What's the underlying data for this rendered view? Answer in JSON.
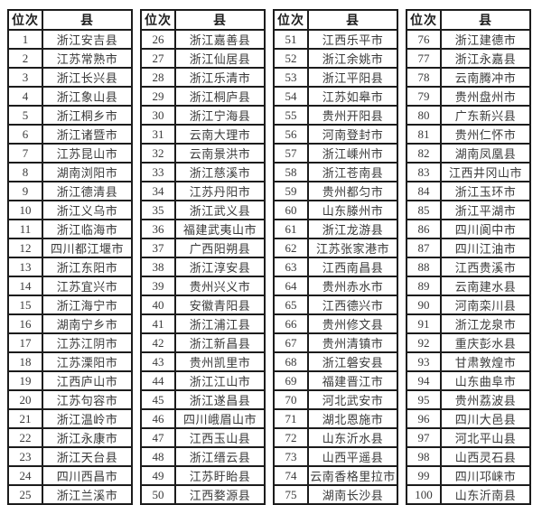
{
  "table": {
    "rank_header": "位次",
    "county_header": "县",
    "colors": {
      "border": "#1c1c1c",
      "text": "#3a3a3a",
      "header_text": "#1e1e1e",
      "background": "#ffffff"
    },
    "columns": [
      {
        "rows": [
          [
            "1",
            "浙江安吉县"
          ],
          [
            "2",
            "江苏常熟市"
          ],
          [
            "3",
            "浙江长兴县"
          ],
          [
            "4",
            "浙江象山县"
          ],
          [
            "5",
            "浙江桐乡市"
          ],
          [
            "6",
            "浙江诸暨市"
          ],
          [
            "7",
            "江苏昆山市"
          ],
          [
            "8",
            "湖南浏阳市"
          ],
          [
            "9",
            "浙江德清县"
          ],
          [
            "10",
            "浙江义乌市"
          ],
          [
            "11",
            "浙江临海市"
          ],
          [
            "12",
            "四川都江堰市"
          ],
          [
            "13",
            "浙江东阳市"
          ],
          [
            "14",
            "江苏宜兴市"
          ],
          [
            "15",
            "浙江海宁市"
          ],
          [
            "16",
            "湖南宁乡市"
          ],
          [
            "17",
            "江苏江阴市"
          ],
          [
            "18",
            "江苏溧阳市"
          ],
          [
            "19",
            "江西庐山市"
          ],
          [
            "20",
            "江苏句容市"
          ],
          [
            "21",
            "浙江温岭市"
          ],
          [
            "22",
            "浙江永康市"
          ],
          [
            "23",
            "浙江天台县"
          ],
          [
            "24",
            "四川西昌市"
          ],
          [
            "25",
            "浙江兰溪市"
          ]
        ]
      },
      {
        "rows": [
          [
            "26",
            "浙江嘉善县"
          ],
          [
            "27",
            "浙江仙居县"
          ],
          [
            "28",
            "浙江乐清市"
          ],
          [
            "29",
            "浙江桐庐县"
          ],
          [
            "30",
            "浙江宁海县"
          ],
          [
            "31",
            "云南大理市"
          ],
          [
            "32",
            "云南景洪市"
          ],
          [
            "33",
            "浙江慈溪市"
          ],
          [
            "34",
            "江苏丹阳市"
          ],
          [
            "35",
            "浙江武义县"
          ],
          [
            "36",
            "福建武夷山市"
          ],
          [
            "37",
            "广西阳朔县"
          ],
          [
            "38",
            "浙江淳安县"
          ],
          [
            "39",
            "贵州兴义市"
          ],
          [
            "40",
            "安徽青阳县"
          ],
          [
            "41",
            "浙江浦江县"
          ],
          [
            "42",
            "浙江新昌县"
          ],
          [
            "43",
            "贵州凯里市"
          ],
          [
            "44",
            "浙江江山市"
          ],
          [
            "45",
            "浙江遂昌县"
          ],
          [
            "46",
            "四川峨眉山市"
          ],
          [
            "47",
            "江西玉山县"
          ],
          [
            "48",
            "浙江缙云县"
          ],
          [
            "49",
            "江苏盱眙县"
          ],
          [
            "50",
            "江西婺源县"
          ]
        ]
      },
      {
        "rows": [
          [
            "51",
            "江西乐平市"
          ],
          [
            "52",
            "浙江余姚市"
          ],
          [
            "53",
            "浙江平阳县"
          ],
          [
            "54",
            "江苏如皋市"
          ],
          [
            "55",
            "贵州开阳县"
          ],
          [
            "56",
            "河南登封市"
          ],
          [
            "57",
            "浙江嵊州市"
          ],
          [
            "58",
            "浙江苍南县"
          ],
          [
            "59",
            "贵州都匀市"
          ],
          [
            "60",
            "山东滕州市"
          ],
          [
            "61",
            "浙江龙游县"
          ],
          [
            "62",
            "江苏张家港市"
          ],
          [
            "63",
            "江西南昌县"
          ],
          [
            "64",
            "贵州赤水市"
          ],
          [
            "65",
            "江西德兴市"
          ],
          [
            "66",
            "贵州修文县"
          ],
          [
            "67",
            "贵州清镇市"
          ],
          [
            "68",
            "浙江磐安县"
          ],
          [
            "69",
            "福建晋江市"
          ],
          [
            "70",
            "河北武安市"
          ],
          [
            "71",
            "湖北恩施市"
          ],
          [
            "72",
            "山东沂水县"
          ],
          [
            "73",
            "山西平遥县"
          ],
          [
            "74",
            "云南香格里拉市"
          ],
          [
            "75",
            "湖南长沙县"
          ]
        ]
      },
      {
        "rows": [
          [
            "76",
            "浙江建德市"
          ],
          [
            "77",
            "浙江永嘉县"
          ],
          [
            "78",
            "云南腾冲市"
          ],
          [
            "79",
            "贵州盘州市"
          ],
          [
            "80",
            "广东新兴县"
          ],
          [
            "81",
            "贵州仁怀市"
          ],
          [
            "82",
            "湖南凤凰县"
          ],
          [
            "83",
            "江西井冈山市"
          ],
          [
            "84",
            "浙江玉环市"
          ],
          [
            "85",
            "浙江平湖市"
          ],
          [
            "86",
            "四川阆中市"
          ],
          [
            "87",
            "四川江油市"
          ],
          [
            "88",
            "江西贵溪市"
          ],
          [
            "89",
            "云南建水县"
          ],
          [
            "90",
            "河南栾川县"
          ],
          [
            "91",
            "浙江龙泉市"
          ],
          [
            "92",
            "重庆彭水县"
          ],
          [
            "93",
            "甘肃敦煌市"
          ],
          [
            "94",
            "山东曲阜市"
          ],
          [
            "95",
            "贵州荔波县"
          ],
          [
            "96",
            "四川大邑县"
          ],
          [
            "97",
            "河北平山县"
          ],
          [
            "98",
            "山西灵石县"
          ],
          [
            "99",
            "四川邛崃市"
          ],
          [
            "100",
            "山东沂南县"
          ]
        ]
      }
    ]
  }
}
